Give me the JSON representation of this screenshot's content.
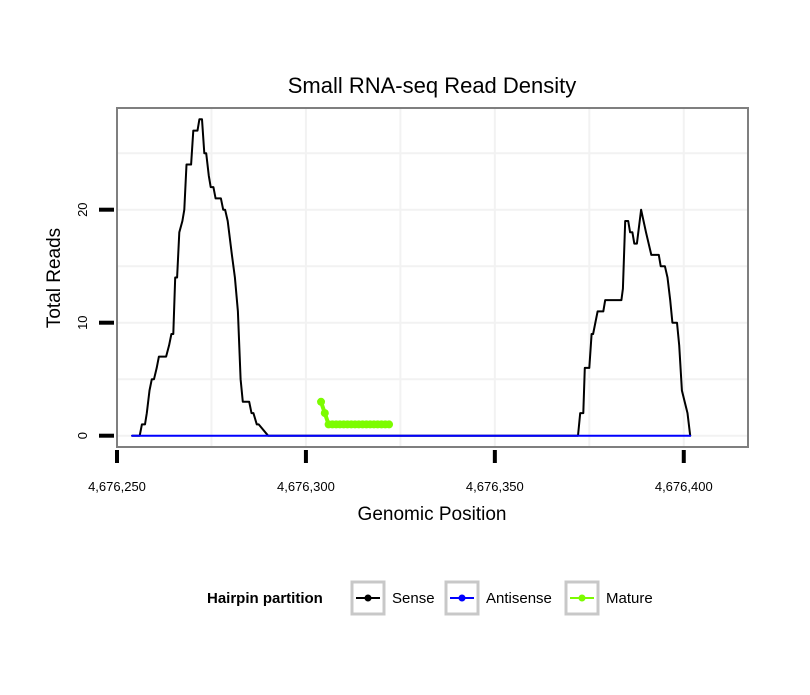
{
  "chart_data": {
    "type": "line",
    "title": "Small RNA-seq Read Density",
    "xlabel": "Genomic Position",
    "ylabel": "Total Reads",
    "xlim": [
      4676250,
      4676417
    ],
    "ylim": [
      -1,
      29
    ],
    "x_ticks": [
      4676250,
      4676300,
      4676350,
      4676400
    ],
    "x_tick_labels": [
      "4,676,250",
      "4,676,300",
      "4,676,350",
      "4,676,400"
    ],
    "y_ticks": [
      0,
      10,
      20
    ],
    "y_tick_labels": [
      "0",
      "10",
      "20"
    ],
    "grid": true,
    "legend_title": "Hairpin partition",
    "legend_position": "bottom",
    "series": [
      {
        "name": "Sense",
        "color": "#000000",
        "style": "line",
        "points": [
          [
            4676254,
            0
          ],
          [
            4676256,
            0
          ],
          [
            4676256.6,
            1
          ],
          [
            4676257.4,
            1
          ],
          [
            4676257.9,
            2
          ],
          [
            4676258.6,
            4
          ],
          [
            4676259.2,
            5
          ],
          [
            4676259.8,
            5
          ],
          [
            4676260.5,
            6
          ],
          [
            4676261.1,
            7
          ],
          [
            4676263,
            7
          ],
          [
            4676263.8,
            8
          ],
          [
            4676264.4,
            9
          ],
          [
            4676264.9,
            9
          ],
          [
            4676265.4,
            14
          ],
          [
            4676265.9,
            14
          ],
          [
            4676266.5,
            18
          ],
          [
            4676267.3,
            19
          ],
          [
            4676267.8,
            20
          ],
          [
            4676268.4,
            24
          ],
          [
            4676269.6,
            24
          ],
          [
            4676270.2,
            27
          ],
          [
            4676271.3,
            27
          ],
          [
            4676271.8,
            28
          ],
          [
            4676272.5,
            28
          ],
          [
            4676273.1,
            25
          ],
          [
            4676273.6,
            25
          ],
          [
            4676274.3,
            23
          ],
          [
            4676274.8,
            22
          ],
          [
            4676275.5,
            22
          ],
          [
            4676276.1,
            21
          ],
          [
            4676277.5,
            21
          ],
          [
            4676278.1,
            20
          ],
          [
            4676278.6,
            20
          ],
          [
            4676279.3,
            19
          ],
          [
            4676280.4,
            16
          ],
          [
            4676281.2,
            14
          ],
          [
            4676282,
            11
          ],
          [
            4676282.7,
            5
          ],
          [
            4676283.3,
            3
          ],
          [
            4676285,
            3
          ],
          [
            4676285.6,
            2
          ],
          [
            4676286.1,
            2
          ],
          [
            4676287,
            1
          ],
          [
            4676287.5,
            1
          ],
          [
            4676290,
            0
          ],
          [
            4676323,
            0
          ],
          [
            4676350,
            0
          ],
          [
            4676372,
            0
          ],
          [
            4676372.6,
            2
          ],
          [
            4676373.4,
            2
          ],
          [
            4676373.8,
            6
          ],
          [
            4676375,
            6
          ],
          [
            4676375.6,
            9
          ],
          [
            4676376,
            9
          ],
          [
            4676377.2,
            11
          ],
          [
            4676378.7,
            11
          ],
          [
            4676379.2,
            12
          ],
          [
            4676383.5,
            12
          ],
          [
            4676383.9,
            13
          ],
          [
            4676384.5,
            19
          ],
          [
            4676385.3,
            19
          ],
          [
            4676385.8,
            18
          ],
          [
            4676386.4,
            18
          ],
          [
            4676386.9,
            17
          ],
          [
            4676387.6,
            17
          ],
          [
            4676388.7,
            20
          ],
          [
            4676390,
            18
          ],
          [
            4676391.4,
            16
          ],
          [
            4676393.4,
            16
          ],
          [
            4676393.9,
            15
          ],
          [
            4676395,
            15
          ],
          [
            4676395.7,
            14
          ],
          [
            4676396.4,
            12
          ],
          [
            4676397,
            10
          ],
          [
            4676398.2,
            10
          ],
          [
            4676398.8,
            8
          ],
          [
            4676399.5,
            4
          ],
          [
            4676401,
            2
          ],
          [
            4676401.7,
            0
          ]
        ]
      },
      {
        "name": "Antisense",
        "color": "#0000ff",
        "style": "line",
        "points": [
          [
            4676254,
            0
          ],
          [
            4676401.7,
            0
          ]
        ]
      },
      {
        "name": "Mature",
        "color": "#7cfc00",
        "style": "line+points",
        "points": [
          [
            4676304,
            3
          ],
          [
            4676305,
            2
          ],
          [
            4676306,
            1
          ],
          [
            4676307,
            1
          ],
          [
            4676308,
            1
          ],
          [
            4676309,
            1
          ],
          [
            4676310,
            1
          ],
          [
            4676311,
            1
          ],
          [
            4676312,
            1
          ],
          [
            4676313,
            1
          ],
          [
            4676314,
            1
          ],
          [
            4676315,
            1
          ],
          [
            4676316,
            1
          ],
          [
            4676317,
            1
          ],
          [
            4676318,
            1
          ],
          [
            4676319,
            1
          ],
          [
            4676320,
            1
          ],
          [
            4676321,
            1
          ],
          [
            4676322,
            1
          ]
        ]
      }
    ]
  }
}
